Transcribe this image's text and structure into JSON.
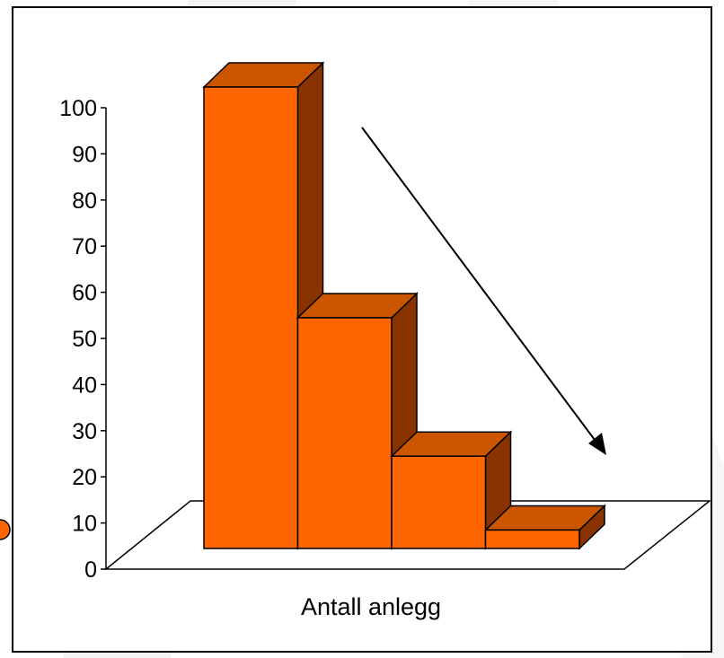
{
  "chart_data": {
    "type": "bar",
    "style": "3d-column",
    "title": "",
    "xlabel": "Antall anlegg",
    "ylabel": "",
    "ylim": [
      0,
      100
    ],
    "yticks": [
      "0",
      "10",
      "20",
      "30",
      "40",
      "50",
      "60",
      "70",
      "80",
      "90",
      "100"
    ],
    "grid": false,
    "legend": "none",
    "categories": [
      "",
      "",
      "",
      ""
    ],
    "values": [
      100,
      50,
      20,
      4
    ],
    "annotation": "downward-trend-arrow"
  },
  "colors": {
    "bar_front": "#FF6600",
    "bar_top": "#CC5500",
    "bar_side": "#883300",
    "background_stripe": "#F2F2F2",
    "side_marker": "#FF6600"
  }
}
